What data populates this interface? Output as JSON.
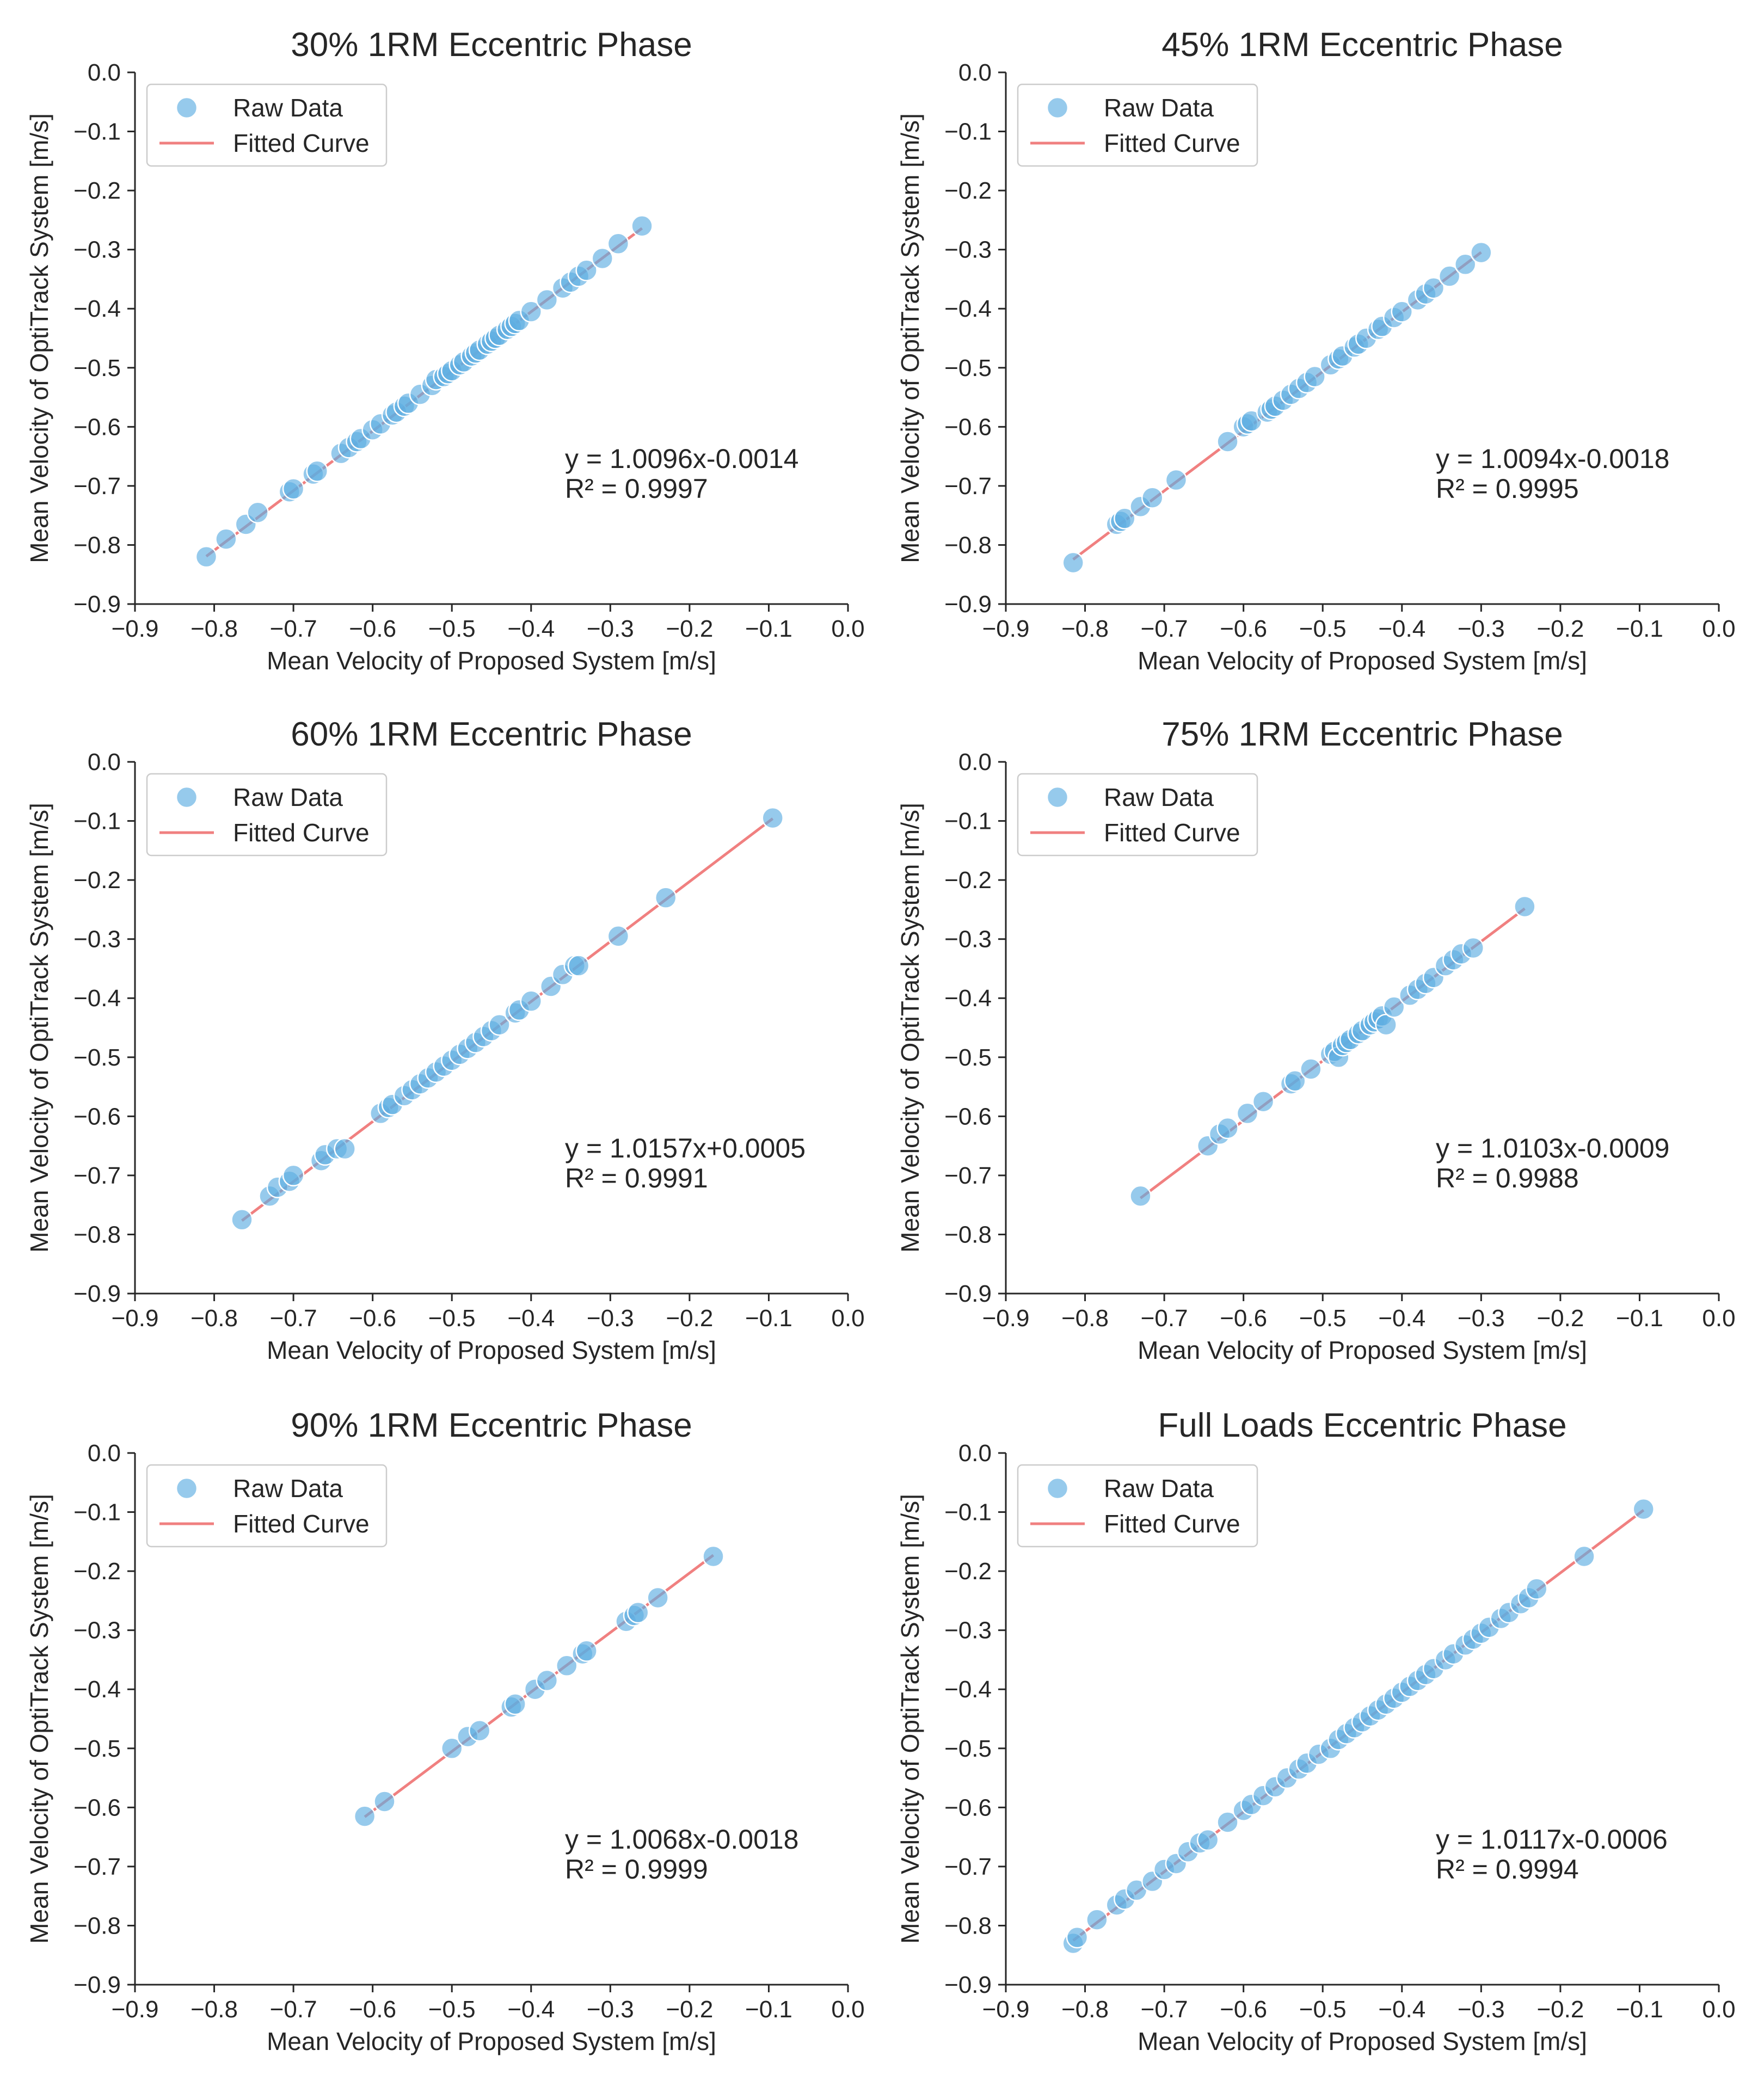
{
  "figure": {
    "x_label": "Mean Velocity of Proposed System [m/s]",
    "y_label": "Mean Velocity of OptiTrack System [m/s]",
    "legend_raw": "Raw Data",
    "legend_fit": "Fitted Curve",
    "point_color": "#5DADE2",
    "line_color": "#F08080",
    "ticks": [
      "−0.9",
      "−0.8",
      "−0.7",
      "−0.6",
      "−0.5",
      "−0.4",
      "−0.3",
      "−0.2",
      "−0.1",
      "0.0"
    ]
  },
  "chart_data": [
    {
      "type": "scatter",
      "title": "30% 1RM Eccentric Phase",
      "xlabel": "Mean Velocity of Proposed System [m/s]",
      "ylabel": "Mean Velocity of OptiTrack System [m/s]",
      "xlim": [
        -0.9,
        0.0
      ],
      "ylim": [
        -0.9,
        0.0
      ],
      "legend": "top-left",
      "equation": "y = 1.0096x-0.0014",
      "r2": "R² = 0.9997",
      "fit": {
        "slope": 1.0096,
        "intercept": -0.0014,
        "x_range": [
          -0.81,
          -0.26
        ]
      },
      "x": [
        -0.81,
        -0.785,
        -0.76,
        -0.745,
        -0.705,
        -0.7,
        -0.675,
        -0.67,
        -0.64,
        -0.63,
        -0.62,
        -0.615,
        -0.6,
        -0.59,
        -0.575,
        -0.57,
        -0.56,
        -0.555,
        -0.54,
        -0.525,
        -0.52,
        -0.51,
        -0.505,
        -0.5,
        -0.49,
        -0.485,
        -0.475,
        -0.47,
        -0.465,
        -0.455,
        -0.45,
        -0.445,
        -0.44,
        -0.43,
        -0.425,
        -0.42,
        -0.415,
        -0.4,
        -0.38,
        -0.36,
        -0.35,
        -0.34,
        -0.33,
        -0.31,
        -0.29,
        -0.26
      ],
      "y": [
        -0.82,
        -0.79,
        -0.765,
        -0.745,
        -0.71,
        -0.705,
        -0.68,
        -0.675,
        -0.645,
        -0.635,
        -0.625,
        -0.62,
        -0.605,
        -0.595,
        -0.58,
        -0.575,
        -0.565,
        -0.56,
        -0.545,
        -0.53,
        -0.52,
        -0.515,
        -0.51,
        -0.505,
        -0.495,
        -0.49,
        -0.48,
        -0.475,
        -0.47,
        -0.46,
        -0.455,
        -0.45,
        -0.445,
        -0.435,
        -0.43,
        -0.425,
        -0.42,
        -0.405,
        -0.385,
        -0.365,
        -0.355,
        -0.345,
        -0.335,
        -0.315,
        -0.29,
        -0.26
      ]
    },
    {
      "type": "scatter",
      "title": "45% 1RM Eccentric Phase",
      "xlabel": "Mean Velocity of Proposed System [m/s]",
      "ylabel": "Mean Velocity of OptiTrack System [m/s]",
      "xlim": [
        -0.9,
        0.0
      ],
      "ylim": [
        -0.9,
        0.0
      ],
      "legend": "top-left",
      "equation": "y = 1.0094x-0.0018",
      "r2": "R² = 0.9995",
      "fit": {
        "slope": 1.0094,
        "intercept": -0.0018,
        "x_range": [
          -0.815,
          -0.3
        ]
      },
      "x": [
        -0.815,
        -0.76,
        -0.755,
        -0.75,
        -0.73,
        -0.715,
        -0.685,
        -0.62,
        -0.6,
        -0.595,
        -0.59,
        -0.57,
        -0.565,
        -0.56,
        -0.55,
        -0.54,
        -0.53,
        -0.52,
        -0.51,
        -0.49,
        -0.48,
        -0.475,
        -0.46,
        -0.455,
        -0.445,
        -0.43,
        -0.425,
        -0.41,
        -0.4,
        -0.38,
        -0.37,
        -0.36,
        -0.34,
        -0.32,
        -0.3
      ],
      "y": [
        -0.83,
        -0.765,
        -0.76,
        -0.755,
        -0.735,
        -0.72,
        -0.69,
        -0.625,
        -0.6,
        -0.595,
        -0.59,
        -0.575,
        -0.57,
        -0.565,
        -0.555,
        -0.545,
        -0.535,
        -0.525,
        -0.515,
        -0.495,
        -0.485,
        -0.48,
        -0.465,
        -0.46,
        -0.45,
        -0.435,
        -0.43,
        -0.415,
        -0.405,
        -0.385,
        -0.375,
        -0.365,
        -0.345,
        -0.325,
        -0.305
      ]
    },
    {
      "type": "scatter",
      "title": "60% 1RM Eccentric Phase",
      "xlabel": "Mean Velocity of Proposed System [m/s]",
      "ylabel": "Mean Velocity of OptiTrack System [m/s]",
      "xlim": [
        -0.9,
        0.0
      ],
      "ylim": [
        -0.9,
        0.0
      ],
      "legend": "top-left",
      "equation": "y = 1.0157x+0.0005",
      "r2": "R² = 0.9991",
      "fit": {
        "slope": 1.0157,
        "intercept": 0.0005,
        "x_range": [
          -0.765,
          -0.095
        ]
      },
      "x": [
        -0.765,
        -0.73,
        -0.72,
        -0.705,
        -0.7,
        -0.665,
        -0.66,
        -0.645,
        -0.635,
        -0.59,
        -0.58,
        -0.575,
        -0.56,
        -0.55,
        -0.54,
        -0.53,
        -0.52,
        -0.51,
        -0.5,
        -0.49,
        -0.48,
        -0.47,
        -0.46,
        -0.45,
        -0.44,
        -0.42,
        -0.415,
        -0.4,
        -0.375,
        -0.36,
        -0.345,
        -0.34,
        -0.29,
        -0.23,
        -0.095
      ],
      "y": [
        -0.775,
        -0.735,
        -0.72,
        -0.71,
        -0.7,
        -0.675,
        -0.665,
        -0.655,
        -0.655,
        -0.595,
        -0.585,
        -0.58,
        -0.565,
        -0.555,
        -0.545,
        -0.535,
        -0.525,
        -0.515,
        -0.505,
        -0.495,
        -0.485,
        -0.475,
        -0.465,
        -0.455,
        -0.445,
        -0.425,
        -0.42,
        -0.405,
        -0.38,
        -0.36,
        -0.345,
        -0.345,
        -0.295,
        -0.23,
        -0.095
      ]
    },
    {
      "type": "scatter",
      "title": "75% 1RM Eccentric Phase",
      "xlabel": "Mean Velocity of Proposed System [m/s]",
      "ylabel": "Mean Velocity of OptiTrack System [m/s]",
      "xlim": [
        -0.9,
        0.0
      ],
      "ylim": [
        -0.9,
        0.0
      ],
      "legend": "top-left",
      "equation": "y = 1.0103x-0.0009",
      "r2": "R² = 0.9988",
      "fit": {
        "slope": 1.0103,
        "intercept": -0.0009,
        "x_range": [
          -0.73,
          -0.245
        ]
      },
      "x": [
        -0.73,
        -0.645,
        -0.63,
        -0.62,
        -0.595,
        -0.575,
        -0.54,
        -0.535,
        -0.515,
        -0.49,
        -0.485,
        -0.48,
        -0.475,
        -0.47,
        -0.465,
        -0.455,
        -0.45,
        -0.44,
        -0.435,
        -0.43,
        -0.425,
        -0.42,
        -0.41,
        -0.39,
        -0.38,
        -0.37,
        -0.36,
        -0.345,
        -0.335,
        -0.325,
        -0.31,
        -0.245
      ],
      "y": [
        -0.735,
        -0.65,
        -0.63,
        -0.62,
        -0.595,
        -0.575,
        -0.545,
        -0.54,
        -0.52,
        -0.495,
        -0.49,
        -0.5,
        -0.48,
        -0.475,
        -0.47,
        -0.46,
        -0.455,
        -0.445,
        -0.44,
        -0.435,
        -0.43,
        -0.445,
        -0.415,
        -0.395,
        -0.385,
        -0.375,
        -0.365,
        -0.345,
        -0.335,
        -0.325,
        -0.315,
        -0.245
      ]
    },
    {
      "type": "scatter",
      "title": "90% 1RM Eccentric Phase",
      "xlabel": "Mean Velocity of Proposed System [m/s]",
      "ylabel": "Mean Velocity of OptiTrack System [m/s]",
      "xlim": [
        -0.9,
        0.0
      ],
      "ylim": [
        -0.9,
        0.0
      ],
      "legend": "top-left",
      "equation": "y = 1.0068x-0.0018",
      "r2": "R² = 0.9999",
      "fit": {
        "slope": 1.0068,
        "intercept": -0.0018,
        "x_range": [
          -0.61,
          -0.17
        ]
      },
      "x": [
        -0.61,
        -0.585,
        -0.5,
        -0.48,
        -0.465,
        -0.425,
        -0.42,
        -0.395,
        -0.38,
        -0.355,
        -0.335,
        -0.33,
        -0.28,
        -0.27,
        -0.265,
        -0.24,
        -0.17
      ],
      "y": [
        -0.615,
        -0.59,
        -0.5,
        -0.48,
        -0.47,
        -0.43,
        -0.425,
        -0.4,
        -0.385,
        -0.36,
        -0.34,
        -0.335,
        -0.285,
        -0.275,
        -0.27,
        -0.245,
        -0.175
      ]
    },
    {
      "type": "scatter",
      "title": "Full Loads Eccentric Phase",
      "xlabel": "Mean Velocity of Proposed System [m/s]",
      "ylabel": "Mean Velocity of OptiTrack System [m/s]",
      "xlim": [
        -0.9,
        0.0
      ],
      "ylim": [
        -0.9,
        0.0
      ],
      "legend": "top-left",
      "equation": "y = 1.0117x-0.0006",
      "r2": "R² = 0.9994",
      "fit": {
        "slope": 1.0117,
        "intercept": -0.0006,
        "x_range": [
          -0.815,
          -0.095
        ]
      },
      "x": [
        -0.815,
        -0.81,
        -0.785,
        -0.76,
        -0.75,
        -0.735,
        -0.715,
        -0.7,
        -0.685,
        -0.67,
        -0.655,
        -0.645,
        -0.62,
        -0.6,
        -0.59,
        -0.575,
        -0.56,
        -0.545,
        -0.53,
        -0.52,
        -0.505,
        -0.49,
        -0.48,
        -0.47,
        -0.46,
        -0.45,
        -0.44,
        -0.43,
        -0.42,
        -0.41,
        -0.4,
        -0.39,
        -0.38,
        -0.37,
        -0.36,
        -0.345,
        -0.335,
        -0.32,
        -0.31,
        -0.3,
        -0.29,
        -0.275,
        -0.265,
        -0.25,
        -0.24,
        -0.23,
        -0.17,
        -0.095
      ],
      "y": [
        -0.83,
        -0.82,
        -0.79,
        -0.765,
        -0.755,
        -0.74,
        -0.725,
        -0.705,
        -0.695,
        -0.675,
        -0.66,
        -0.655,
        -0.625,
        -0.605,
        -0.595,
        -0.58,
        -0.565,
        -0.55,
        -0.535,
        -0.525,
        -0.51,
        -0.5,
        -0.485,
        -0.475,
        -0.465,
        -0.455,
        -0.445,
        -0.435,
        -0.425,
        -0.415,
        -0.405,
        -0.395,
        -0.385,
        -0.375,
        -0.365,
        -0.35,
        -0.34,
        -0.325,
        -0.315,
        -0.305,
        -0.295,
        -0.28,
        -0.27,
        -0.255,
        -0.245,
        -0.23,
        -0.175,
        -0.095
      ]
    }
  ]
}
